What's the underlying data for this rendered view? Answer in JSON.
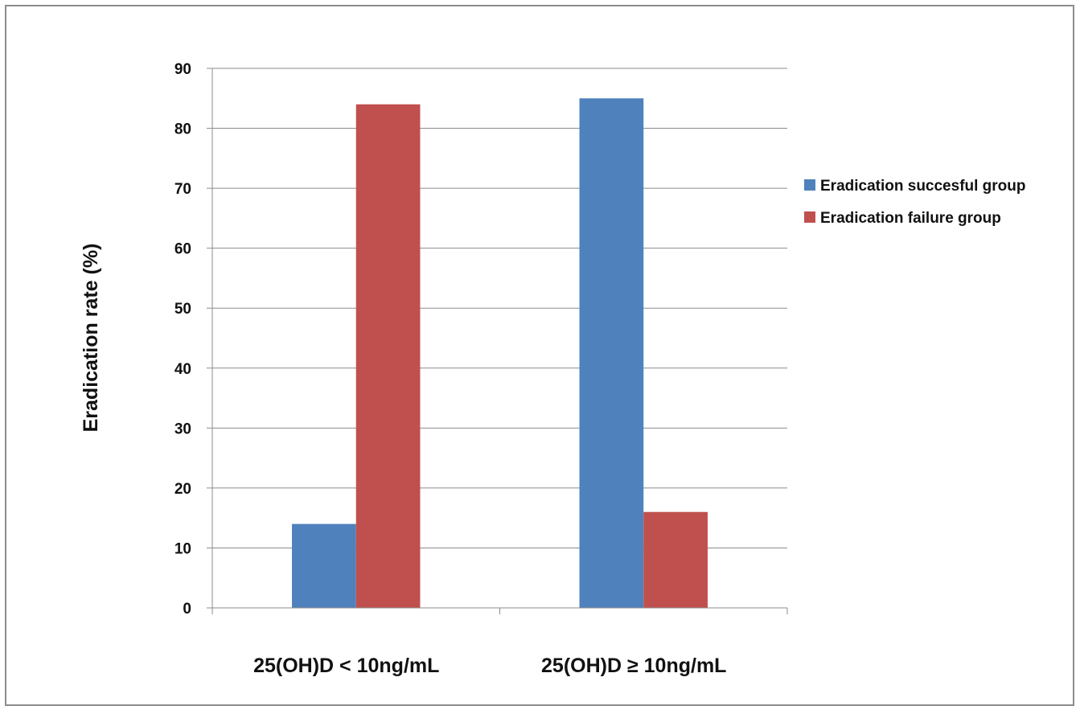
{
  "chart_data": {
    "type": "bar",
    "title": "",
    "ylabel": "Eradication rate (%)",
    "xlabel": "",
    "ylim": [
      0,
      90
    ],
    "ytick_step": 10,
    "grid": true,
    "legend_position": "right",
    "categories": [
      "25(OH)D < 10ng/mL",
      "25(OH)D ≥ 10ng/mL"
    ],
    "series": [
      {
        "name": "Eradication succesful group",
        "color": "#4f81bd",
        "values": [
          14,
          85
        ]
      },
      {
        "name": "Eradication failure group",
        "color": "#c0504d",
        "values": [
          84,
          16
        ]
      }
    ]
  }
}
